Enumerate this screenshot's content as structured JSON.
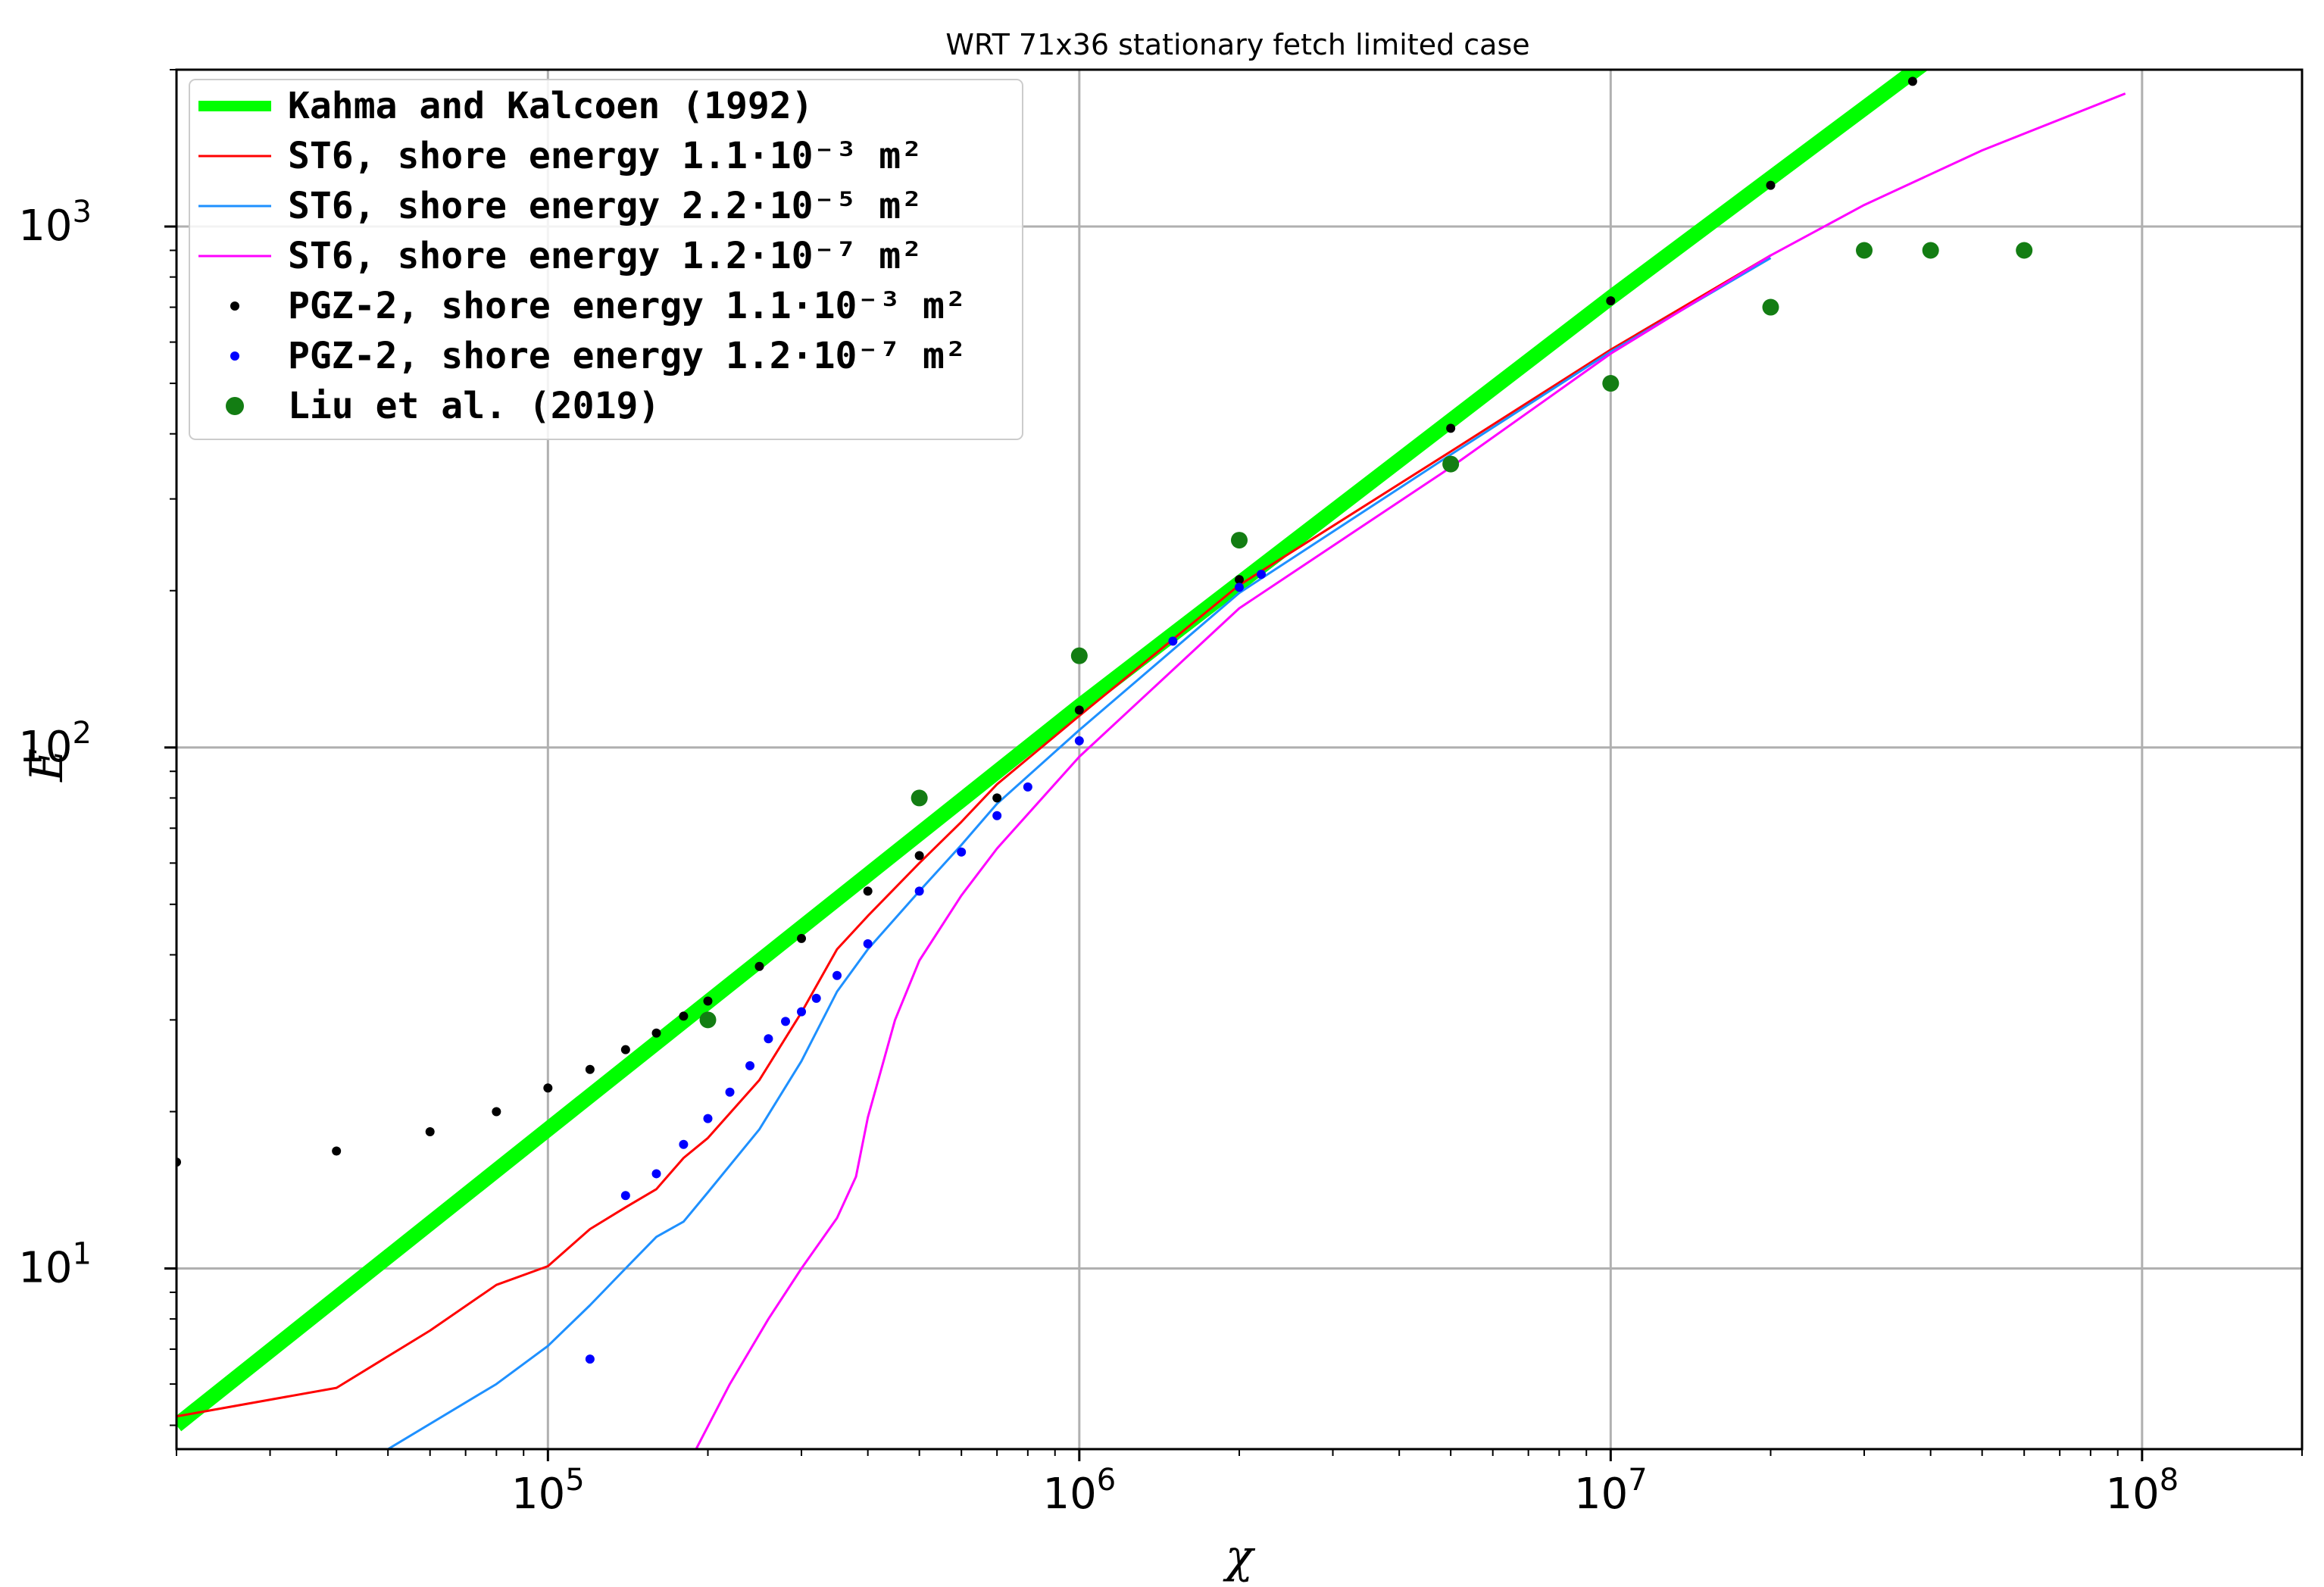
{
  "chart_data": {
    "type": "line",
    "title": "WRT 71x36 stationary fetch limited case",
    "xlabel": "χ",
    "ylabel": "E",
    "xscale": "log",
    "yscale": "log",
    "xlim": [
      20000,
      200000000
    ],
    "ylim": [
      4.5,
      2000
    ],
    "x_tick_labels": [
      {
        "base": "10",
        "exp": "5",
        "value": 100000
      },
      {
        "base": "10",
        "exp": "6",
        "value": 1000000
      },
      {
        "base": "10",
        "exp": "7",
        "value": 10000000
      },
      {
        "base": "10",
        "exp": "8",
        "value": 100000000
      }
    ],
    "y_tick_labels": [
      {
        "base": "10",
        "exp": "1",
        "value": 10
      },
      {
        "base": "10",
        "exp": "2",
        "value": 100
      },
      {
        "base": "10",
        "exp": "3",
        "value": 1000
      }
    ],
    "grid": true,
    "legend_position": "upper-left",
    "series": [
      {
        "name": "Kahma and Kalcoen (1992)",
        "style": "line",
        "color": "#00ff00",
        "x": [
          20000,
          100000,
          1000000,
          10000000,
          40000000
        ],
        "y": [
          5.0,
          18.5,
          120,
          730,
          2100
        ]
      },
      {
        "name": "ST6, shore energy 1.1·10⁻³ m²",
        "style": "line",
        "color": "#ff0000",
        "x": [
          20000,
          40000,
          60000,
          80000,
          100000,
          120000,
          140000,
          160000,
          180000,
          200000,
          250000,
          300000,
          350000,
          400000,
          500000,
          600000,
          700000,
          1000000,
          2000000,
          5000000,
          10000000,
          20000000
        ],
        "y": [
          5.2,
          5.9,
          7.6,
          9.3,
          10.1,
          11.9,
          13.1,
          14.2,
          16.3,
          17.8,
          23.0,
          31.0,
          41.0,
          47.5,
          60.0,
          72.0,
          85.0,
          115,
          205,
          370,
          580,
          880
        ]
      },
      {
        "name": "ST6, shore energy 2.2·10⁻⁵ m²",
        "style": "line",
        "color": "#1e90ff",
        "x": [
          50000,
          80000,
          100000,
          120000,
          140000,
          160000,
          180000,
          200000,
          250000,
          300000,
          350000,
          400000,
          500000,
          600000,
          700000,
          1000000,
          2000000,
          5000000,
          10000000,
          20000000
        ],
        "y": [
          4.5,
          6.0,
          7.1,
          8.5,
          10.0,
          11.5,
          12.3,
          14.0,
          18.5,
          25.0,
          34.0,
          41.0,
          53.0,
          65.0,
          78.0,
          108,
          198,
          365,
          575,
          870
        ]
      },
      {
        "name": "ST6, shore energy 1.2·10⁻⁷ m²",
        "style": "line",
        "color": "#ff00ff",
        "x": [
          190000,
          220000,
          260000,
          300000,
          350000,
          380000,
          400000,
          450000,
          500000,
          600000,
          700000,
          1000000,
          2000000,
          5000000,
          10000000,
          20000000,
          30000000,
          50000000,
          93000000
        ],
        "y": [
          4.5,
          6.0,
          8.0,
          10.0,
          12.5,
          15.0,
          19.5,
          30.0,
          39.0,
          52.0,
          64.0,
          96.0,
          185,
          345,
          570,
          880,
          1100,
          1400,
          1800
        ]
      },
      {
        "name": "PGZ-2, shore energy 1.1·10⁻³ m²",
        "style": "points",
        "color": "#000000",
        "x": [
          20000,
          40000,
          60000,
          80000,
          100000,
          120000,
          140000,
          160000,
          180000,
          200000,
          250000,
          300000,
          400000,
          500000,
          700000,
          1000000,
          2000000,
          5000000,
          10000000,
          20000000,
          37000000
        ],
        "y": [
          16.0,
          16.8,
          18.3,
          20.0,
          22.2,
          24.1,
          26.3,
          28.3,
          30.5,
          32.6,
          38.0,
          43.0,
          53.0,
          62.0,
          80.0,
          118,
          210,
          410,
          720,
          1200,
          1900
        ]
      },
      {
        "name": "PGZ-2, shore energy 1.2·10⁻⁷ m²",
        "style": "points",
        "color": "#0000ff",
        "x": [
          120000,
          140000,
          160000,
          180000,
          200000,
          220000,
          240000,
          260000,
          280000,
          300000,
          320000,
          350000,
          400000,
          500000,
          600000,
          700000,
          800000,
          1000000,
          1500000,
          2000000,
          2200000
        ],
        "y": [
          6.7,
          13.8,
          15.2,
          17.3,
          19.4,
          21.8,
          24.5,
          27.6,
          29.8,
          31.1,
          33.0,
          36.5,
          42.0,
          53.0,
          63.0,
          74.0,
          84.0,
          103,
          160,
          203,
          215
        ]
      },
      {
        "name": "Liu et al. (2019)",
        "style": "points",
        "color": "#137d13",
        "x": [
          200000,
          500000,
          1000000,
          2000000,
          5000000,
          10000000,
          20000000,
          30000000,
          40000000,
          60000000
        ],
        "y": [
          30,
          80,
          150,
          250,
          350,
          500,
          700,
          900,
          900,
          900
        ]
      }
    ]
  }
}
